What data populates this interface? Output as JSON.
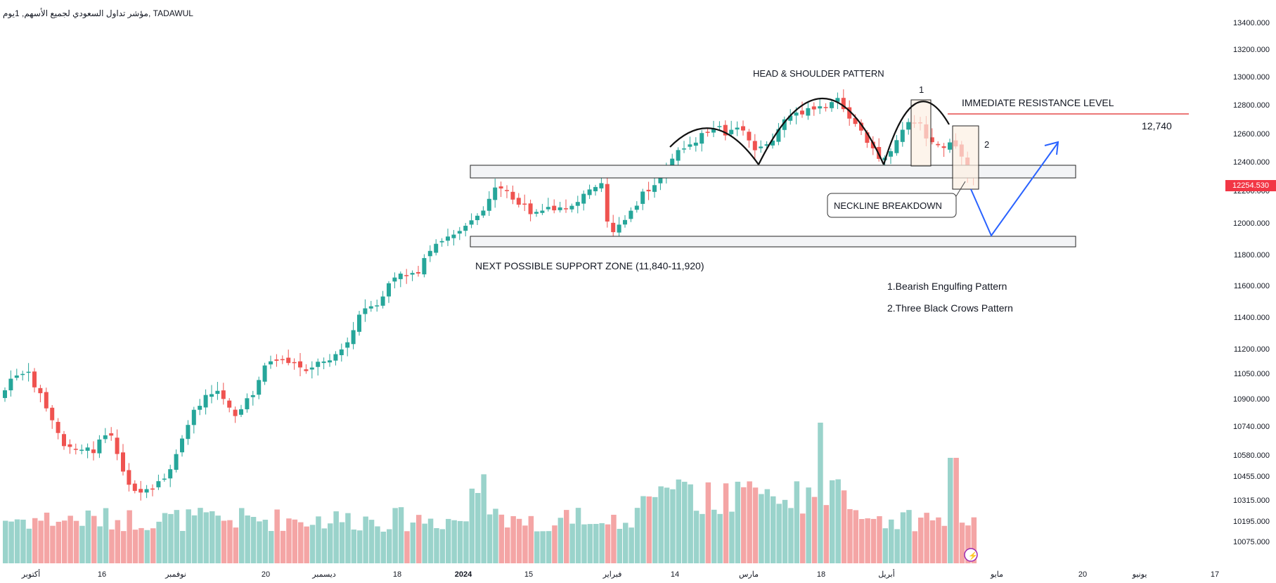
{
  "header": {
    "title": "مؤشر تداول السعودي لجميع الأسهم, 1يوم, TADAWUL"
  },
  "price_axis": {
    "labels": [
      "13400.000",
      "13200.000",
      "13000.000",
      "12800.000",
      "12600.000",
      "12400.000",
      "12200.000",
      "12000.000",
      "11800.000",
      "11600.000",
      "11400.000",
      "11200.000",
      "11050.000",
      "10900.000",
      "10740.000",
      "10580.000",
      "10455.000",
      "10315.000",
      "10195.000",
      "10075.000"
    ],
    "last_price": "12254.530",
    "last_price_color": "#f23645"
  },
  "time_axis": {
    "labels": [
      "أكتوبر",
      "16",
      "نوفمبر",
      "20",
      "ديسمبر",
      "18",
      "2024",
      "15",
      "فبراير",
      "14",
      "مارس",
      "18",
      "أبريل",
      "مايو",
      "20",
      "يونيو",
      "17"
    ]
  },
  "annotations": {
    "head_shoulder": "HEAD & SHOULDER PATTERN",
    "resistance_label": "IMMEDIATE RESISTANCE LEVEL",
    "resistance_value": "12,740",
    "neckline_breakdown": "NECKLINE BREAKDOWN",
    "support_zone": "NEXT POSSIBLE SUPPORT ZONE (11,840-11,920)",
    "pattern_1": "1.Bearish Engulfing Pattern",
    "pattern_2": "2.Three Black Crows Pattern",
    "marker_1": "1",
    "marker_2": "2"
  },
  "colors": {
    "up": "#26a69a",
    "down": "#ef5350",
    "up_volume": "#9ad3cb",
    "down_volume": "#f4a5a5",
    "resistance_line": "#e54b4b",
    "arrow": "#2962ff",
    "axis_text": "#131722"
  }
}
